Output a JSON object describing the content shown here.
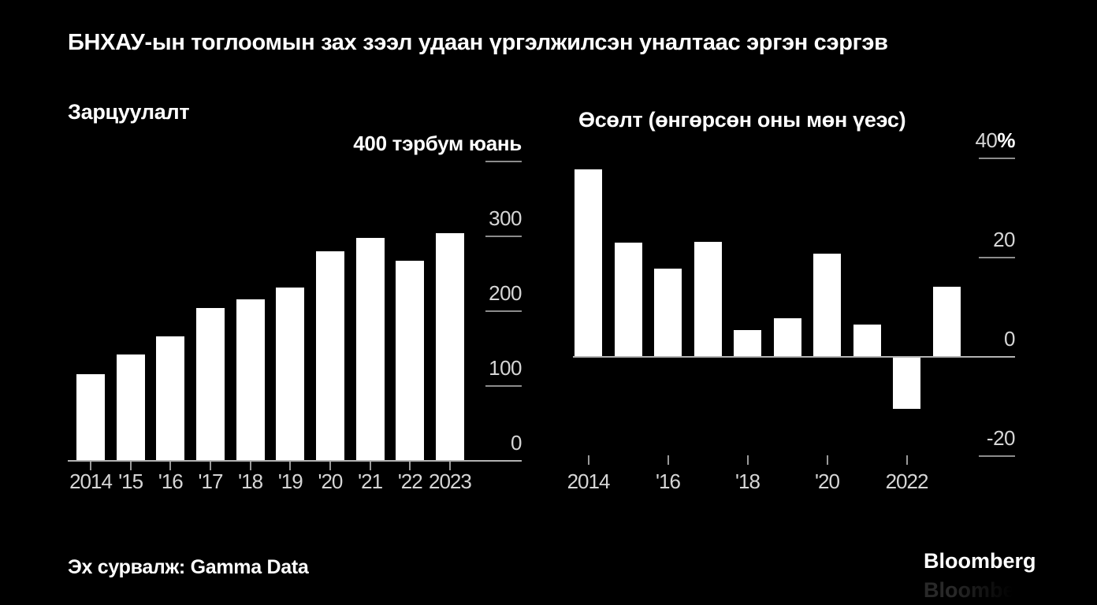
{
  "title": "БНХАУ-ын тоглоомын зах зээл удаан үргэлжилсэн уналтаас эргэн сэргэв",
  "source": "Эх сурвалж: Gamma Data",
  "brand": "Bloomberg",
  "colors": {
    "background": "#000000",
    "bar": "#ffffff",
    "axis_line": "#b3b3b3",
    "tick_line": "#8c8c8c",
    "tick_label": "#d6d6d6",
    "title": "#ffffff"
  },
  "chart_data": [
    {
      "type": "bar",
      "title": "Зарцуулалт",
      "unit": "тэрбум юань",
      "categories": [
        "2014",
        "'15",
        "'16",
        "'17",
        "'18",
        "'19",
        "'20",
        "'21",
        "'22",
        "2023"
      ],
      "values": [
        114.5,
        140.7,
        165.6,
        203.6,
        214.4,
        230.9,
        278.7,
        296.5,
        265.9,
        303
      ],
      "ylim": [
        0,
        400
      ],
      "yticks": [
        {
          "value": 400,
          "label": "400 тэрбум юань",
          "emphasis": true
        },
        {
          "value": 300,
          "label": "300"
        },
        {
          "value": 200,
          "label": "200"
        },
        {
          "value": 100,
          "label": "100"
        },
        {
          "value": 0,
          "label": "0"
        }
      ],
      "x_label_indices": [
        0,
        1,
        2,
        3,
        4,
        5,
        6,
        7,
        8,
        9
      ],
      "x_tick_indices": [
        0,
        1,
        2,
        3,
        4,
        5,
        6,
        7,
        8,
        9
      ],
      "grid": false,
      "legend": "none",
      "bar_color": "#ffffff"
    },
    {
      "type": "bar",
      "title": "Өсөлт (өнгөрсөн оны мөн үеэс)",
      "unit": "%",
      "categories": [
        "2014",
        "'15",
        "'16",
        "'17",
        "'18",
        "'19",
        "'20",
        "'21",
        "'22",
        "2023"
      ],
      "values": [
        37.7,
        22.9,
        17.7,
        23,
        5.3,
        7.7,
        20.7,
        6.4,
        -10.3,
        14
      ],
      "ylim": [
        -25,
        40
      ],
      "yticks": [
        {
          "value": 40,
          "label": "40",
          "suffix": "%"
        },
        {
          "value": 20,
          "label": "20"
        },
        {
          "value": 0,
          "label": "0"
        },
        {
          "value": -20,
          "label": "-20"
        }
      ],
      "x_label_indices": [
        0,
        2,
        4,
        6,
        8
      ],
      "x_labels": [
        "2014",
        "'16",
        "'18",
        "'20",
        "2022"
      ],
      "x_tick_indices": [
        0,
        2,
        4,
        6,
        8
      ],
      "grid": false,
      "legend": "none",
      "bar_color": "#ffffff"
    }
  ]
}
